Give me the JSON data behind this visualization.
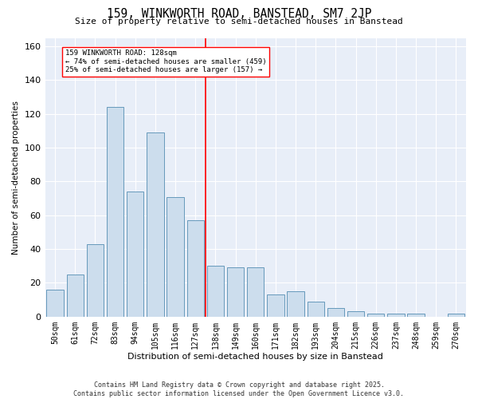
{
  "title": "159, WINKWORTH ROAD, BANSTEAD, SM7 2JP",
  "subtitle": "Size of property relative to semi-detached houses in Banstead",
  "xlabel": "Distribution of semi-detached houses by size in Banstead",
  "ylabel": "Number of semi-detached properties",
  "categories": [
    "50sqm",
    "61sqm",
    "72sqm",
    "83sqm",
    "94sqm",
    "105sqm",
    "116sqm",
    "127sqm",
    "138sqm",
    "149sqm",
    "160sqm",
    "171sqm",
    "182sqm",
    "193sqm",
    "204sqm",
    "215sqm",
    "226sqm",
    "237sqm",
    "248sqm",
    "259sqm",
    "270sqm"
  ],
  "values": [
    16,
    25,
    43,
    124,
    74,
    109,
    71,
    57,
    30,
    29,
    29,
    13,
    15,
    9,
    5,
    3,
    2,
    2,
    2,
    0,
    2
  ],
  "bar_color": "#ccdded",
  "bar_edge_color": "#6699bb",
  "vline_x": 7.5,
  "vline_label": "159 WINKWORTH ROAD: 128sqm",
  "annotation_line1": "← 74% of semi-detached houses are smaller (459)",
  "annotation_line2": "25% of semi-detached houses are larger (157) →",
  "ylim": [
    0,
    165
  ],
  "yticks": [
    0,
    20,
    40,
    60,
    80,
    100,
    120,
    140,
    160
  ],
  "bg_color": "#e8eef8",
  "footer_line1": "Contains HM Land Registry data © Crown copyright and database right 2025.",
  "footer_line2": "Contains public sector information licensed under the Open Government Licence v3.0."
}
